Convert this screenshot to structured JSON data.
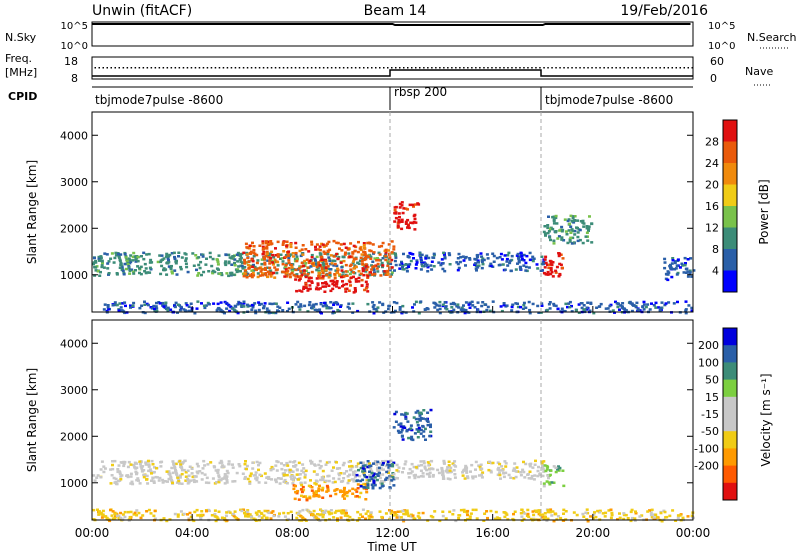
{
  "header": {
    "left": "Unwin (fitACF)",
    "center": "Beam 14",
    "right": "19/Feb/2016"
  },
  "strips": {
    "nsky": {
      "label": "N.Sky",
      "ticks": [
        "10^5",
        "10^0"
      ],
      "right_label": "N.Search"
    },
    "freq": {
      "label_1": "Freq.",
      "label_2": "[MHz]",
      "ticks": [
        "18",
        "8"
      ],
      "right_ticks": [
        "60",
        "0"
      ],
      "right_label": "Nave"
    },
    "cpid": {
      "label": "CPID",
      "modes": [
        "tbjmode7pulse -8600",
        "rbsp 200",
        "tbjmode7pulse -8600"
      ]
    }
  },
  "colors": {
    "power": [
      "#0000ff",
      "#2a5fa8",
      "#3c8c78",
      "#79c24b",
      "#f0cc16",
      "#f08a0c",
      "#ea5a0a",
      "#e01010"
    ],
    "velocity": [
      "#e01010",
      "#ff5a00",
      "#ff9a00",
      "#f0cc16",
      "#c8c8c8",
      "#c8c8c8",
      "#7ccf40",
      "#3c8c78",
      "#2a5fa8",
      "#0000dd"
    ]
  },
  "chart_data": [
    {
      "type": "heatmap",
      "title": "Power",
      "xlabel": "",
      "ylabel": "Slant Range [km]",
      "xlim": [
        "00:00",
        "24:00"
      ],
      "ylim": [
        200,
        4500
      ],
      "yticks": [
        "1000",
        "2000",
        "3000",
        "4000"
      ],
      "colorbar": {
        "label": "Power [dB]",
        "ticks": [
          "4",
          "8",
          "12",
          "16",
          "20",
          "24",
          "28"
        ]
      },
      "features": [
        {
          "t0": 0.0,
          "t1": 12.0,
          "r0": 1000,
          "r1": 1500,
          "value_db": 8
        },
        {
          "t0": 6.0,
          "t1": 12.0,
          "r0": 950,
          "r1": 1750,
          "value_db": 24
        },
        {
          "t0": 8.0,
          "t1": 11.0,
          "r0": 650,
          "r1": 1000,
          "value_db": 30
        },
        {
          "t0": 12.0,
          "t1": 13.0,
          "r0": 2000,
          "r1": 2600,
          "value_db": 28
        },
        {
          "t0": 12.0,
          "t1": 18.0,
          "r0": 1100,
          "r1": 1500,
          "value_db": 6
        },
        {
          "t0": 18.0,
          "t1": 18.8,
          "r0": 950,
          "r1": 1500,
          "value_db": 28
        },
        {
          "t0": 18.0,
          "t1": 20.0,
          "r0": 1700,
          "r1": 2300,
          "value_db": 8
        },
        {
          "t0": 22.8,
          "t1": 24.0,
          "r0": 900,
          "r1": 1400,
          "value_db": 6
        },
        {
          "t0": 0.0,
          "t1": 24.0,
          "r0": 200,
          "r1": 450,
          "value_db": 5
        }
      ]
    },
    {
      "type": "heatmap",
      "title": "Velocity",
      "xlabel": "Time UT",
      "ylabel": "Slant Range [km]",
      "xlim": [
        "00:00",
        "24:00"
      ],
      "xticks": [
        "00:00",
        "04:00",
        "08:00",
        "12:00",
        "16:00",
        "20:00",
        "00:00"
      ],
      "ylim": [
        200,
        4500
      ],
      "yticks": [
        "1000",
        "2000",
        "3000",
        "4000"
      ],
      "colorbar": {
        "label": "Velocity [m s⁻¹]",
        "ticks": [
          "200",
          "100",
          "50",
          "15",
          "-15",
          "-50",
          "-100",
          "-200"
        ]
      },
      "features": [
        {
          "t0": 0.0,
          "t1": 12.0,
          "r0": 1000,
          "r1": 1500,
          "value_ms": 0
        },
        {
          "t0": 8.0,
          "t1": 11.0,
          "r0": 650,
          "r1": 1000,
          "value_ms": -80
        },
        {
          "t0": 10.5,
          "t1": 12.0,
          "r0": 900,
          "r1": 1500,
          "value_ms": 200
        },
        {
          "t0": 12.0,
          "t1": 13.5,
          "r0": 1950,
          "r1": 2600,
          "value_ms": 200
        },
        {
          "t0": 12.0,
          "t1": 18.0,
          "r0": 1100,
          "r1": 1500,
          "value_ms": 0
        },
        {
          "t0": 18.0,
          "t1": 18.8,
          "r0": 950,
          "r1": 1400,
          "value_ms": 50
        },
        {
          "t0": 0.0,
          "t1": 24.0,
          "r0": 200,
          "r1": 450,
          "value_ms": -15
        }
      ]
    }
  ]
}
